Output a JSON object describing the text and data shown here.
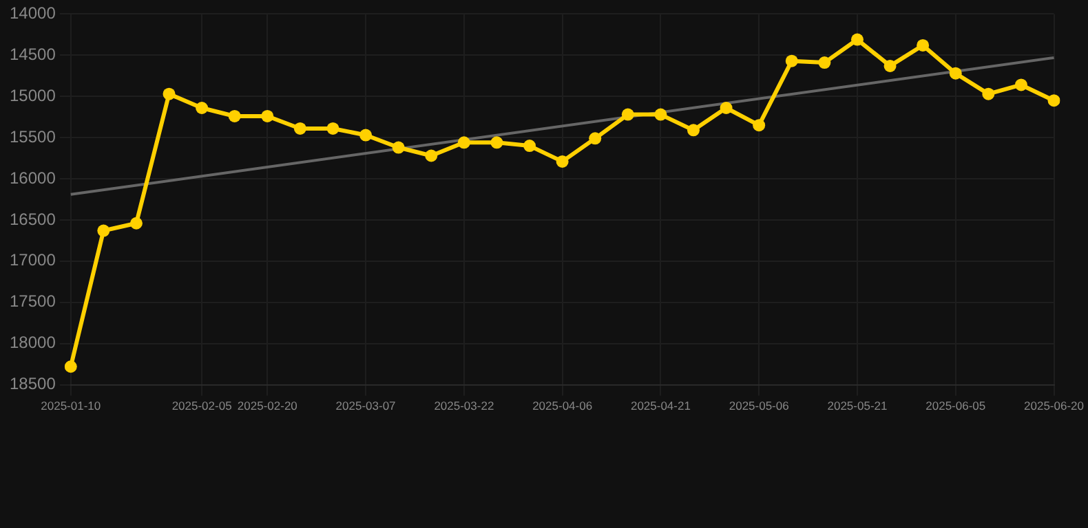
{
  "chart_data": {
    "type": "line",
    "categories": [
      "2025-01-10",
      null,
      null,
      null,
      "2025-02-05",
      null,
      "2025-02-20",
      null,
      null,
      "2025-03-07",
      null,
      null,
      "2025-03-22",
      null,
      null,
      "2025-04-06",
      null,
      null,
      "2025-04-21",
      null,
      null,
      "2025-05-06",
      null,
      null,
      "2025-05-21",
      null,
      null,
      "2025-06-05",
      null,
      null,
      "2025-06-20"
    ],
    "series": [
      {
        "color": "#ffd000",
        "values": [
          18280,
          16630,
          16540,
          14970,
          15140,
          15240,
          15240,
          15390,
          15390,
          15470,
          15620,
          15720,
          15560,
          15560,
          15600,
          15790,
          15510,
          15220,
          15220,
          15410,
          15140,
          15350,
          14570,
          14590,
          14310,
          14630,
          14380,
          14720,
          14970,
          14860,
          15050
        ]
      },
      {
        "type": "line",
        "color": "#666666",
        "marker": "none",
        "values": [
          16190,
          null,
          null,
          null,
          null,
          null,
          null,
          null,
          null,
          null,
          null,
          null,
          null,
          null,
          null,
          null,
          null,
          null,
          null,
          null,
          null,
          null,
          null,
          null,
          null,
          null,
          null,
          null,
          null,
          null,
          14530
        ]
      }
    ],
    "ylim": [
      18500,
      14000
    ],
    "yticks": [
      14000,
      14500,
      15000,
      15500,
      16000,
      16500,
      17000,
      17500,
      18000,
      18500
    ],
    "grid": true,
    "marker": "circle",
    "line_style": "solid"
  }
}
